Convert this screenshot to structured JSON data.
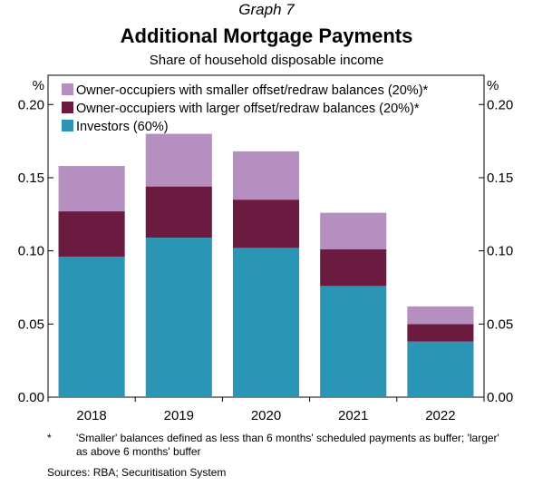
{
  "header": {
    "graph_label": "Graph 7",
    "title": "Additional Mortgage Payments",
    "subtitle": "Share of household disposable income"
  },
  "chart_data": {
    "type": "bar",
    "stacked": true,
    "categories": [
      "2018",
      "2019",
      "2020",
      "2021",
      "2022"
    ],
    "series": [
      {
        "name": "Investors (60%)",
        "color": "#2a95b5",
        "values": [
          0.096,
          0.109,
          0.102,
          0.076,
          0.038
        ]
      },
      {
        "name": "Owner-occupiers with larger offset/redraw balances (20%)*",
        "color": "#6b1a40",
        "values": [
          0.031,
          0.035,
          0.033,
          0.025,
          0.012
        ]
      },
      {
        "name": "Owner-occupiers with smaller offset/redraw balances (20%)*",
        "color": "#b58fc0",
        "values": [
          0.031,
          0.036,
          0.033,
          0.025,
          0.012
        ]
      }
    ],
    "legend_order": [
      2,
      1,
      0
    ],
    "legend_position": "top-left",
    "ylim": [
      0,
      0.22
    ],
    "yticks": [
      "0.00",
      "0.05",
      "0.10",
      "0.15",
      "0.20"
    ],
    "y_unit_left": "%",
    "y_unit_right": "%",
    "gridlines": false
  },
  "footnote": {
    "mark": "*",
    "text": "'Smaller' balances defined as less than 6 months' scheduled payments as buffer; 'larger' as above 6 months' buffer"
  },
  "sources": "Sources:  RBA; Securitisation System"
}
